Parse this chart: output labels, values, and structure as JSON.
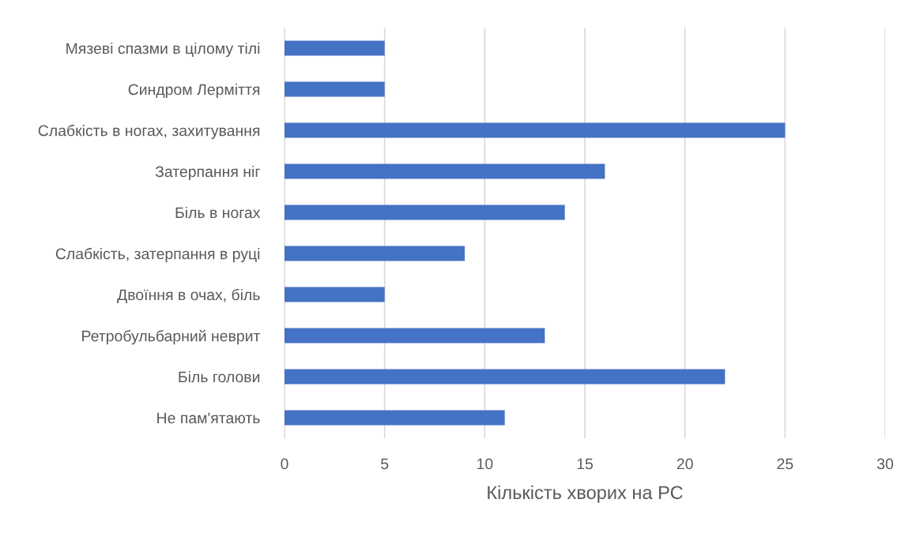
{
  "chart_data": {
    "type": "bar",
    "orientation": "horizontal",
    "xlabel": "Кількість хворих на РС",
    "categories": [
      "Мязеві спазми в цілому тілі",
      "Синдром Лерміття",
      "Слабкість в ногах, захитування",
      "Затерпання ніг",
      "Біль в ногах",
      "Слабкість, затерпання в руці",
      "Двоїння в очах, біль",
      "Ретробульбарний неврит",
      "Біль голови",
      "Не пам'ятають"
    ],
    "values": [
      5,
      5,
      25,
      16,
      14,
      9,
      5,
      13,
      22,
      11
    ],
    "color": "#4472c4",
    "xlim": [
      0,
      30
    ],
    "xticks": [
      0,
      5,
      10,
      15,
      20,
      25,
      30
    ],
    "grid": "x",
    "legend": false
  }
}
